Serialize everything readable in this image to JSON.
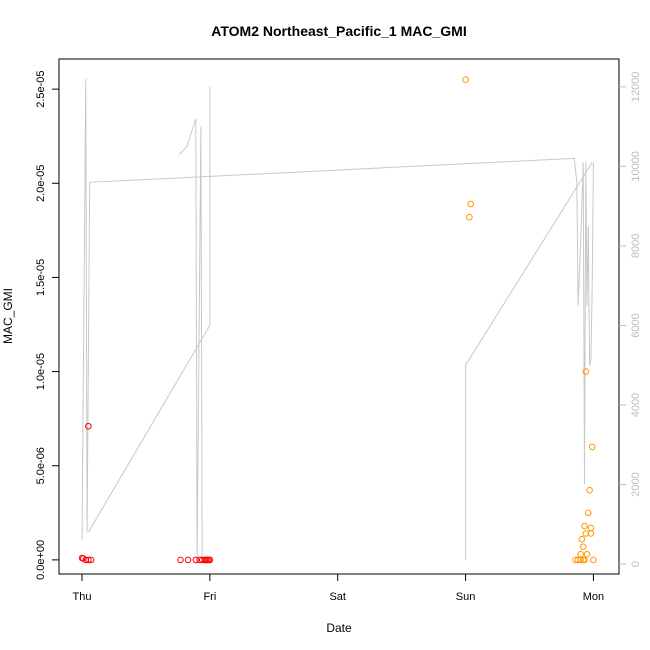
{
  "chart_data": {
    "type": "scatter",
    "title": "ATOM2 Northeast_Pacific_1 MAC_GMI",
    "xlabel": "Date",
    "ylabel": "MAC_GMI",
    "x_ticks": [
      "Thu",
      "Fri",
      "Sat",
      "Sun",
      "Mon"
    ],
    "x_tick_days": [
      0,
      1,
      2,
      3,
      4
    ],
    "xlim_days": [
      -0.18,
      4.2
    ],
    "ylim": [
      -7.5e-07,
      2.66e-05
    ],
    "y_ticks": [
      0,
      5e-06,
      1e-05,
      1.5e-05,
      2e-05,
      2.5e-05
    ],
    "y_tick_labels": [
      "0.0e+00",
      "5.0e-06",
      "1.0e-05",
      "1.5e-05",
      "2.0e-05",
      "2.5e-05"
    ],
    "y2lim": [
      -250,
      12700
    ],
    "y2_ticks": [
      0,
      2000,
      4000,
      6000,
      8000,
      10000,
      12000
    ],
    "y2_tick_labels": [
      "0",
      "2000",
      "4000",
      "6000",
      "8000",
      "10000",
      "12000"
    ],
    "grid": false,
    "legend": "none",
    "colors": {
      "series1": "#ff0000",
      "series2": "#ff9900",
      "altitude": "#c8c8c8"
    },
    "series": [
      {
        "color": "series1",
        "points": [
          [
            0.0,
            1e-07
          ],
          [
            0.01,
            7e-08
          ],
          [
            0.03,
            0.0
          ],
          [
            0.05,
            0.0
          ],
          [
            0.07,
            0.0
          ],
          [
            0.05,
            7.1e-06
          ],
          [
            0.77,
            0.0
          ],
          [
            0.83,
            0.0
          ],
          [
            0.89,
            0.0
          ],
          [
            0.92,
            0.0
          ],
          [
            0.94,
            0.0
          ],
          [
            0.96,
            0.0
          ],
          [
            0.97,
            0.0
          ],
          [
            0.98,
            0.0
          ],
          [
            0.99,
            0.0
          ],
          [
            1.0,
            0.0
          ]
        ]
      },
      {
        "color": "series2",
        "points": [
          [
            3.0,
            2.55e-05
          ],
          [
            3.04,
            1.89e-05
          ],
          [
            3.03,
            1.82e-05
          ],
          [
            3.86,
            0.0
          ],
          [
            3.88,
            0.0
          ],
          [
            3.9,
            0.0
          ],
          [
            3.92,
            0.0
          ],
          [
            3.93,
            0.0
          ],
          [
            3.9,
            3e-07
          ],
          [
            3.91,
            1.1e-06
          ],
          [
            3.92,
            7e-07
          ],
          [
            3.93,
            1.8e-06
          ],
          [
            3.94,
            1.4e-06
          ],
          [
            3.95,
            3e-07
          ],
          [
            3.96,
            2.5e-06
          ],
          [
            3.97,
            3.7e-06
          ],
          [
            3.98,
            1.7e-06
          ],
          [
            3.98,
            1.4e-06
          ],
          [
            3.99,
            6e-06
          ],
          [
            3.94,
            1e-05
          ],
          [
            4.0,
            0.0
          ]
        ]
      }
    ],
    "altitude_line": {
      "color": "altitude",
      "segments": [
        [
          [
            0.0,
            600
          ],
          [
            0.03,
            12200
          ],
          [
            0.04,
            800
          ],
          [
            0.06,
            9600
          ],
          [
            3.85,
            10200
          ],
          [
            3.87,
            9600
          ],
          [
            3.88,
            6500
          ],
          [
            3.9,
            8000
          ],
          [
            3.92,
            10100
          ],
          [
            3.93,
            2000
          ],
          [
            3.94,
            10100
          ],
          [
            3.95,
            6500
          ],
          [
            3.96,
            8500
          ],
          [
            3.97,
            5000
          ],
          [
            3.98,
            5100
          ],
          [
            3.99,
            7000
          ],
          [
            4.0,
            10100
          ]
        ],
        [
          [
            0.05,
            800
          ],
          [
            1.0,
            6000
          ],
          [
            1.0,
            12000
          ]
        ],
        [
          [
            0.76,
            10300
          ],
          [
            0.82,
            10500
          ],
          [
            0.89,
            11200
          ],
          [
            0.9,
            100
          ],
          [
            0.93,
            11000
          ],
          [
            0.94,
            100
          ]
        ],
        [
          [
            3.0,
            100
          ],
          [
            3.0,
            5000
          ],
          [
            3.99,
            10100
          ]
        ]
      ]
    }
  }
}
